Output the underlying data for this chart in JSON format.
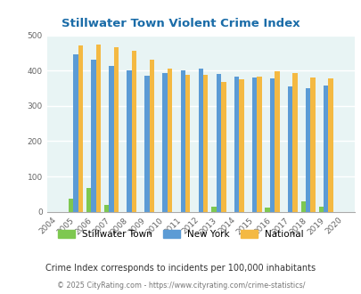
{
  "title": "Stillwater Town Violent Crime Index",
  "years": [
    2004,
    2005,
    2006,
    2007,
    2008,
    2009,
    2010,
    2011,
    2012,
    2013,
    2014,
    2015,
    2016,
    2017,
    2018,
    2019,
    2020
  ],
  "stillwater": [
    0,
    37,
    67,
    18,
    0,
    0,
    0,
    0,
    0,
    15,
    0,
    0,
    12,
    0,
    30,
    13,
    0
  ],
  "new_york": [
    0,
    445,
    432,
    413,
    400,
    386,
    393,
    400,
    406,
    390,
    383,
    380,
    377,
    356,
    350,
    357,
    0
  ],
  "national": [
    0,
    470,
    473,
    467,
    455,
    431,
    405,
    389,
    387,
    367,
    376,
    383,
    397,
    394,
    381,
    379,
    0
  ],
  "colors": {
    "stillwater": "#7ec850",
    "new_york": "#5b9bd5",
    "national": "#f4b942"
  },
  "bg_color": "#e8f4f4",
  "ylim": [
    0,
    500
  ],
  "yticks": [
    0,
    100,
    200,
    300,
    400,
    500
  ],
  "note": "Crime Index corresponds to incidents per 100,000 inhabitants",
  "footer": "© 2025 CityRating.com - https://www.cityrating.com/crime-statistics/",
  "title_color": "#1a6ca8",
  "note_color": "#333333",
  "footer_color": "#777777"
}
